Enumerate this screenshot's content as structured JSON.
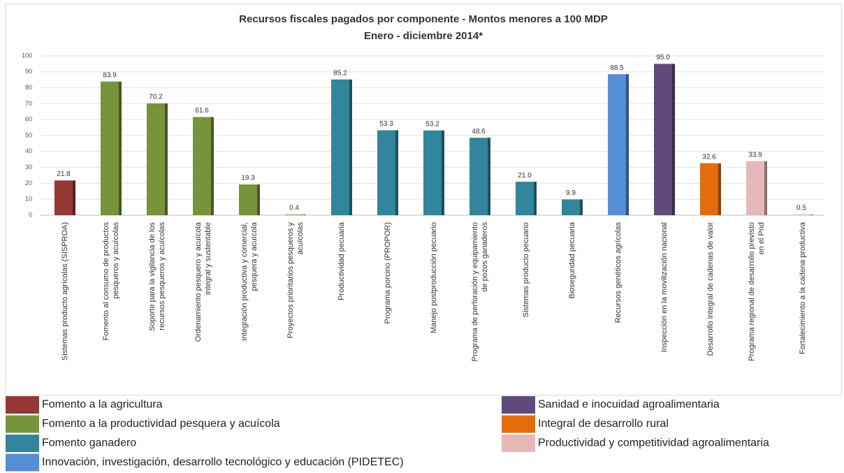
{
  "chart_data": {
    "type": "bar",
    "title": "Recursos fiscales pagados por componente - Montos menores a 100 MDP",
    "subtitle": "Enero - diciembre 2014*",
    "categories": [
      "Sistemas producto agrícolas (SISPROA)",
      "Fomento al consumo de productos pesqueros y acuícolas",
      "Soporte para la vigilancia de los recursos pesqueros y acuícolas",
      "Ordenamiento pesquero y acuícola integral y sustentable",
      "Integración productiva y comercial, pesquera y acuícola",
      "Proyectos prioritarios pesqueros y acuícolas",
      "Productividad pecuaria",
      "Programa porcino (PROPOR)",
      "Manejo postproducción pecuario",
      "Programa de perforación y equipamiento de pozos ganaderos",
      "Sistemas producto pecuario",
      "Bioseguridad pecuaria",
      "Recursos genéticos agrícolas",
      "Inspección en la movilización nacional",
      "Desarrollo integral de cadenas de valor",
      "Programa regional de desarrollo previsto en el Pnd",
      "Fortalecimiento a la cadena productiva"
    ],
    "values": [
      21.8,
      83.9,
      70.2,
      61.6,
      19.3,
      0.4,
      85.2,
      53.3,
      53.2,
      48.6,
      21.0,
      9.9,
      88.5,
      95.0,
      32.6,
      33.9,
      0.5
    ],
    "value_labels": [
      "21.8",
      "83.9",
      "70.2",
      "61.6",
      "19.3",
      "0.4",
      "85.2",
      "53.3",
      "53.2",
      "48.6",
      "21.0",
      "9.9",
      "88.5",
      "95.0",
      "32.6",
      "33.9",
      "0.5"
    ],
    "colors": [
      "#953735",
      "#77933c",
      "#77933c",
      "#77933c",
      "#77933c",
      "#77933c",
      "#31859c",
      "#31859c",
      "#31859c",
      "#31859c",
      "#31859c",
      "#31859c",
      "#558ed5",
      "#604a7b",
      "#e46c0a",
      "#e6b9b8",
      "#e6b9b8"
    ],
    "ylim": [
      0,
      100
    ],
    "yticks": [
      0,
      10,
      20,
      30,
      40,
      50,
      60,
      70,
      80,
      90,
      100
    ],
    "grid": true,
    "legend": [
      {
        "name": "Fomento a la agricultura",
        "color": "#953735"
      },
      {
        "name": "Fomento a la productividad pesquera y acuícola",
        "color": "#77933c"
      },
      {
        "name": "Fomento ganadero",
        "color": "#31859c"
      },
      {
        "name": "Innovación, investigación, desarrollo tecnológico y educación (PIDETEC)",
        "color": "#558ed5"
      },
      {
        "name": "Sanidad e inocuidad agroalimentaria",
        "color": "#604a7b"
      },
      {
        "name": "Integral de desarrollo rural",
        "color": "#e46c0a"
      },
      {
        "name": "Productividad y competitividad agroalimentaria",
        "color": "#e6b9b8"
      }
    ]
  }
}
